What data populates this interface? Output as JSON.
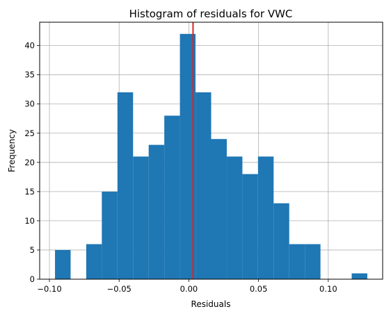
{
  "chart_data": {
    "type": "bar",
    "title": "Histogram of residuals for VWC",
    "xlabel": "Residuals",
    "ylabel": "Frequency",
    "xlim": [
      -0.107,
      0.139
    ],
    "ylim": [
      0,
      44
    ],
    "grid": true,
    "bar_color": "#1f77b4",
    "marker_line": {
      "x": 0.003,
      "color": "#d62728"
    },
    "x_ticks": [
      -0.1,
      -0.05,
      0.0,
      0.05,
      0.1
    ],
    "x_tick_labels": [
      "−0.10",
      "−0.05",
      "0.00",
      "0.05",
      "0.10"
    ],
    "y_ticks": [
      0,
      5,
      10,
      15,
      20,
      25,
      30,
      35,
      40
    ],
    "y_tick_labels": [
      "0",
      "5",
      "10",
      "15",
      "20",
      "25",
      "30",
      "35",
      "40"
    ],
    "bin_start": -0.096,
    "bin_width": 0.0112,
    "counts": [
      5,
      0,
      6,
      15,
      32,
      21,
      23,
      28,
      42,
      32,
      24,
      21,
      18,
      21,
      13,
      6,
      6,
      0,
      0,
      1
    ]
  }
}
